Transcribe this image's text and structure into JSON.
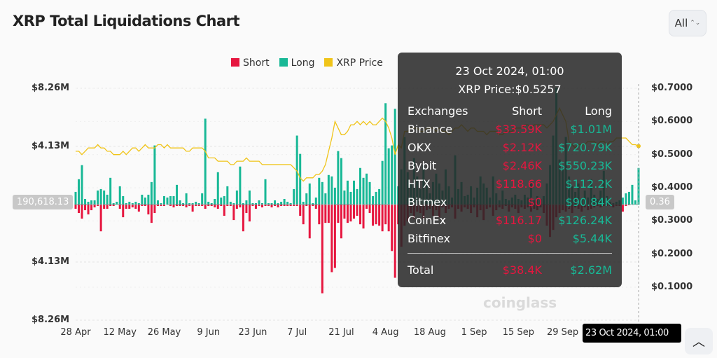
{
  "header": {
    "title": "XRP Total Liquidations Chart",
    "range_select": "All",
    "range_icon": "updown-chevron-icon"
  },
  "colors": {
    "short": "#e6163f",
    "long": "#18b896",
    "price": "#f0c419"
  },
  "watermark": "coinglass",
  "chart_data": {
    "type": "bar",
    "legend": [
      {
        "name": "Short",
        "color": "#e6163f"
      },
      {
        "name": "Long",
        "color": "#18b896"
      },
      {
        "name": "XRP Price",
        "color": "#f0c419"
      }
    ],
    "legend_position": "top-center",
    "x_ticks": [
      "28 Apr",
      "12 May",
      "26 May",
      "9 Jun",
      "23 Jun",
      "7 Jul",
      "21 Jul",
      "4 Aug",
      "18 Aug",
      "1 Sep",
      "15 Sep",
      "29 Sep"
    ],
    "x_range": [
      "28 Apr 2024",
      "23 Oct 2024"
    ],
    "left_ticks_top": [
      "$8.26M",
      "$4.13M"
    ],
    "left_ticks_bottom": [
      "$4.13M",
      "$8.26M"
    ],
    "left_range_musd": [
      -8.26,
      8.26
    ],
    "right_ticks": [
      "$0.7000",
      "$0.6000",
      "$0.5000",
      "$0.4000",
      "$0.3000",
      "$0.2000",
      "$0.1000"
    ],
    "right_range": [
      0.0,
      0.7
    ],
    "crosshair_left_label": "190,618.13",
    "crosshair_right_label": "0.36",
    "crosshair_x_label": "23 Oct 2024, 01:00",
    "long_musd": [
      0.9,
      1.8,
      2.8,
      0.4,
      0.2,
      0.3,
      0.3,
      1.0,
      1.1,
      1.0,
      0.7,
      1.9,
      0.1,
      0.2,
      1.3,
      0.6,
      0.1,
      0.2,
      0.1,
      0.2,
      0.1,
      0.7,
      0.5,
      0.7,
      1.6,
      4.2,
      0.3,
      0.1,
      0.6,
      0.5,
      0.6,
      0.6,
      1.4,
      0.3,
      0.1,
      0.8,
      0.1,
      0.1,
      0.2,
      0.1,
      0.8,
      6.1,
      0.2,
      0.1,
      0.4,
      2.3,
      0.5,
      0.6,
      1.3,
      0.2,
      0.1,
      1.0,
      2.7,
      0.1,
      0.3,
      1.0,
      0.1,
      0.1,
      0.3,
      0.1,
      1.8,
      0.1,
      0.1,
      0.3,
      0.1,
      0.2,
      0.4,
      0.2,
      0.1,
      1.1,
      4.9,
      3.6,
      0.2,
      0.8,
      1.5,
      0.1,
      0.5,
      1.9,
      1.6,
      0.8,
      2.1,
      2.0,
      1.2,
      3.8,
      3.3,
      1.0,
      1.7,
      0.9,
      1.7,
      1.1,
      2.6,
      1.9,
      2.2,
      1.6,
      0.6,
      0.9,
      1.1,
      3.1,
      7.2,
      4.0,
      4.2,
      6.8,
      1.3,
      2.5,
      4.8,
      2.3,
      1.5,
      3.3,
      2.0,
      1.1,
      2.8,
      1.7,
      0.8,
      1.6,
      2.2,
      1.5,
      1.0,
      2.5,
      1.3,
      0.5,
      3.5,
      1.1,
      1.6,
      0.6,
      0.7,
      1.3,
      0.5,
      1.2,
      2.0,
      1.5,
      1.2,
      0.5,
      2.0,
      0.8,
      0.3,
      1.0,
      0.4,
      0.3,
      0.5,
      0.7,
      0.4,
      0.3,
      0.7,
      0.5,
      1.6,
      0.3,
      0.6,
      0.4,
      0.6,
      1.5,
      2.8,
      4.9,
      8.3,
      3.2,
      2.5,
      4.8,
      2.0,
      1.3,
      0.9,
      1.5,
      0.4,
      1.0,
      0.5,
      1.8,
      0.7,
      0.4,
      1.0,
      2.4,
      0.6,
      0.2,
      0.1,
      0.2,
      0.3,
      0.5,
      0.8,
      0.9,
      1.4,
      0.3,
      2.6
    ],
    "short_musd": [
      0.3,
      0.6,
      1.0,
      0.4,
      0.7,
      0.4,
      0.2,
      0.1,
      1.9,
      0.3,
      0.3,
      0.1,
      0.1,
      0.0,
      0.3,
      0.9,
      0.3,
      0.3,
      0.2,
      0.3,
      0.5,
      0.1,
      0.1,
      0.7,
      1.3,
      0.6,
      0.1,
      0.1,
      0.1,
      0.0,
      0.1,
      0.2,
      0.1,
      0.1,
      0.1,
      0.2,
      0.1,
      0.5,
      0.1,
      0.1,
      0.1,
      0.3,
      0.1,
      0.1,
      0.2,
      0.3,
      0.1,
      0.8,
      0.1,
      0.1,
      1.1,
      0.3,
      0.2,
      1.9,
      0.6,
      1.2,
      0.1,
      0.3,
      0.1,
      0.2,
      0.1,
      0.1,
      0.2,
      0.1,
      0.2,
      0.1,
      0.1,
      0.1,
      0.1,
      0.1,
      0.1,
      0.8,
      1.4,
      0.1,
      2.4,
      0.1,
      0.3,
      1.4,
      6.3,
      1.3,
      1.3,
      4.8,
      4.5,
      1.3,
      2.4,
      1.0,
      1.3,
      1.2,
      1.0,
      0.8,
      1.4,
      1.7,
      0.3,
      0.6,
      1.5,
      1.4,
      1.5,
      1.9,
      1.4,
      1.9,
      3.3,
      5.2,
      1.4,
      3.0,
      1.5,
      1.2,
      0.6,
      1.0,
      0.5,
      0.6,
      1.0,
      0.4,
      0.3,
      0.8,
      0.4,
      0.9,
      0.2,
      0.6,
      0.3,
      0.2,
      1.0,
      0.3,
      0.5,
      0.2,
      0.3,
      0.6,
      0.2,
      0.9,
      0.4,
      1.1,
      0.3,
      0.2,
      0.8,
      0.4,
      0.2,
      0.3,
      0.1,
      0.5,
      0.2,
      0.3,
      0.6,
      0.2,
      0.3,
      0.2,
      0.5,
      0.3,
      0.4,
      0.2,
      0.6,
      1.5,
      2.3,
      1.8,
      0.9,
      0.6,
      0.4,
      0.5,
      0.3,
      0.6,
      0.2,
      0.3,
      0.5,
      0.2,
      0.4,
      0.3,
      0.2,
      0.1,
      0.2,
      0.1,
      0.1,
      0.1,
      0.2,
      0.1,
      0.1,
      0.5,
      0.1,
      0.04
    ],
    "price_usd": [
      0.51,
      0.51,
      0.5,
      0.51,
      0.52,
      0.52,
      0.52,
      0.53,
      0.52,
      0.52,
      0.51,
      0.51,
      0.5,
      0.5,
      0.5,
      0.51,
      0.5,
      0.51,
      0.52,
      0.52,
      0.51,
      0.52,
      0.53,
      0.52,
      0.52,
      0.52,
      0.53,
      0.53,
      0.52,
      0.53,
      0.52,
      0.52,
      0.52,
      0.52,
      0.52,
      0.51,
      0.51,
      0.52,
      0.52,
      0.52,
      0.52,
      0.51,
      0.49,
      0.49,
      0.49,
      0.48,
      0.48,
      0.48,
      0.48,
      0.47,
      0.47,
      0.48,
      0.48,
      0.48,
      0.49,
      0.48,
      0.48,
      0.48,
      0.48,
      0.47,
      0.47,
      0.47,
      0.47,
      0.47,
      0.47,
      0.47,
      0.47,
      0.47,
      0.47,
      0.46,
      0.45,
      0.43,
      0.42,
      0.43,
      0.43,
      0.43,
      0.44,
      0.44,
      0.45,
      0.47,
      0.51,
      0.55,
      0.6,
      0.58,
      0.56,
      0.56,
      0.57,
      0.59,
      0.59,
      0.6,
      0.59,
      0.6,
      0.59,
      0.6,
      0.59,
      0.59,
      0.6,
      0.61,
      0.6,
      0.58,
      0.55,
      0.5,
      0.53,
      0.52,
      0.57,
      0.57,
      0.58,
      0.58,
      0.58,
      0.57,
      0.57,
      0.58,
      0.58,
      0.58,
      0.57,
      0.58,
      0.57,
      0.57,
      0.56,
      0.57,
      0.58,
      0.58,
      0.59,
      0.58,
      0.57,
      0.58,
      0.58,
      0.57,
      0.57,
      0.57,
      0.56,
      0.57,
      0.57,
      0.57,
      0.56,
      0.56,
      0.57,
      0.57,
      0.57,
      0.58,
      0.58,
      0.58,
      0.59,
      0.59,
      0.58,
      0.59,
      0.59,
      0.59,
      0.59,
      0.58,
      0.59,
      0.6,
      0.62,
      0.64,
      0.62,
      0.6,
      0.54,
      0.53,
      0.52,
      0.53,
      0.53,
      0.53,
      0.54,
      0.54,
      0.54,
      0.53,
      0.54,
      0.54,
      0.53,
      0.54,
      0.54,
      0.55,
      0.55,
      0.55,
      0.55,
      0.54,
      0.53,
      0.53,
      0.5257
    ]
  },
  "tooltip": {
    "date": "23 Oct 2024, 01:00",
    "price": "XRP Price:$0.5257",
    "headers": [
      "Exchanges",
      "Short",
      "Long"
    ],
    "rows": [
      {
        "exchange": "Binance",
        "short": "$33.59K",
        "long": "$1.01M"
      },
      {
        "exchange": "OKX",
        "short": "$2.12K",
        "long": "$720.79K"
      },
      {
        "exchange": "Bybit",
        "short": "$2.46K",
        "long": "$550.23K"
      },
      {
        "exchange": "HTX",
        "short": "$118.66",
        "long": "$112.2K"
      },
      {
        "exchange": "Bitmex",
        "short": "$0",
        "long": "$90.84K"
      },
      {
        "exchange": "CoinEx",
        "short": "$116.17",
        "long": "$126.24K"
      },
      {
        "exchange": "Bitfinex",
        "short": "$0",
        "long": "$5.44K"
      }
    ],
    "total": {
      "label": "Total",
      "short": "$38.4K",
      "long": "$2.62M"
    }
  },
  "scroll_top_icon": "chevron-up-icon"
}
